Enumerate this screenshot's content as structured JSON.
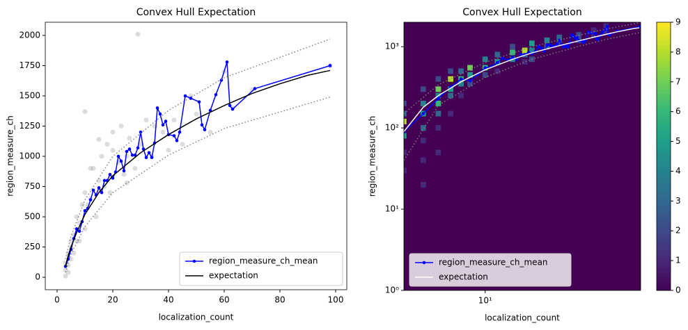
{
  "chart_data": [
    {
      "type": "line",
      "title": "Convex Hull Expectation",
      "xlabel": "localization_count",
      "ylabel": "region_measure_ch",
      "xlim": [
        -4.25,
        104
      ],
      "ylim": [
        -103,
        2109
      ],
      "xticks": [
        0,
        20,
        40,
        60,
        80,
        100
      ],
      "yticks": [
        0,
        250,
        500,
        750,
        1000,
        1250,
        1500,
        1750,
        2000
      ],
      "legend": "lower right",
      "points": {
        "color": "#808080",
        "x": [
          3,
          3,
          3,
          4,
          4,
          4,
          5,
          5,
          5,
          6,
          6,
          7,
          7,
          8,
          8,
          9,
          10,
          10,
          11,
          12,
          13,
          14,
          15,
          16,
          17,
          18,
          19,
          20,
          22,
          23,
          24,
          25,
          26,
          28,
          29,
          30,
          32,
          34,
          35,
          38,
          40,
          42,
          45,
          48,
          50,
          55,
          60,
          63,
          70,
          98,
          10,
          12,
          15,
          20,
          25
        ],
        "values": [
          10,
          60,
          120,
          100,
          200,
          40,
          150,
          300,
          250,
          350,
          200,
          300,
          500,
          450,
          300,
          600,
          700,
          400,
          600,
          650,
          900,
          500,
          800,
          1000,
          750,
          1100,
          700,
          1200,
          950,
          1250,
          850,
          1000,
          1150,
          900,
          2010,
          1100,
          1300,
          1000,
          1250,
          1200,
          1050,
          1300,
          1100,
          1500,
          1350,
          1200,
          1700,
          1400,
          1550,
          1750,
          1370,
          900,
          1140,
          1050,
          780
        ]
      },
      "series": [
        {
          "name": "region_measure_ch_mean",
          "color": "#0000ff",
          "marker": true,
          "x": [
            3,
            4,
            5,
            6,
            7,
            8,
            9,
            10,
            11,
            12,
            13,
            14,
            15,
            16,
            17,
            18,
            19,
            20,
            21,
            22,
            23,
            24,
            25,
            26,
            27,
            28,
            29,
            30,
            31,
            32,
            33,
            34,
            35,
            36,
            37,
            38,
            39,
            40,
            42,
            43,
            44,
            46,
            48,
            51,
            52,
            53,
            55,
            57,
            59,
            61,
            62,
            63,
            71,
            98
          ],
          "values": [
            90,
            150,
            230,
            320,
            400,
            380,
            460,
            550,
            570,
            640,
            720,
            680,
            740,
            700,
            800,
            800,
            850,
            820,
            870,
            1000,
            960,
            880,
            1040,
            1060,
            1010,
            1010,
            1070,
            1200,
            1060,
            990,
            1030,
            990,
            1110,
            1400,
            1350,
            1260,
            1290,
            1180,
            1170,
            1130,
            1200,
            1500,
            1480,
            1450,
            1260,
            1220,
            1380,
            1510,
            1630,
            1780,
            1420,
            1390,
            1560,
            1750
          ]
        },
        {
          "name": "expectation",
          "color": "#000000",
          "x": [
            3,
            4,
            5,
            7,
            10,
            15,
            20,
            30,
            40,
            50,
            60,
            70,
            80,
            90,
            98
          ],
          "values": [
            90,
            180,
            250,
            370,
            520,
            700,
            840,
            1030,
            1180,
            1310,
            1420,
            1520,
            1600,
            1670,
            1710
          ]
        },
        {
          "color": "#808080",
          "dotted": true,
          "x": [
            3,
            5,
            10,
            20,
            40,
            60,
            98
          ],
          "values": [
            150,
            340,
            640,
            1000,
            1380,
            1650,
            1970
          ]
        },
        {
          "color": "#808080",
          "dotted": true,
          "x": [
            3,
            5,
            10,
            20,
            40,
            60,
            98
          ],
          "values": [
            40,
            190,
            420,
            700,
            1010,
            1230,
            1490
          ]
        }
      ]
    },
    {
      "type": "histogram2d",
      "title": "Convex Hull Expectation",
      "xlabel": "localization_count",
      "ylabel": "region_measure_ch",
      "xscale": "log",
      "yscale": "log",
      "xlim": [
        3,
        100
      ],
      "ylim": [
        1,
        2000
      ],
      "xticks": [
        {
          "value": 10,
          "label": "10¹"
        }
      ],
      "yticks": [
        {
          "value": 1,
          "label": "10⁰"
        },
        {
          "value": 10,
          "label": "10¹"
        },
        {
          "value": 100,
          "label": "10²"
        },
        {
          "value": 1000,
          "label": "10³"
        }
      ],
      "legend": "lower left",
      "colormap": "viridis",
      "clim": [
        0,
        9
      ],
      "cticks": [
        0,
        1,
        2,
        3,
        4,
        5,
        6,
        7,
        8,
        9
      ],
      "cells": {
        "x": [
          3,
          3,
          3,
          3,
          3,
          3,
          4,
          4,
          4,
          4,
          4,
          4,
          4,
          5,
          5,
          5,
          5,
          5,
          5,
          5,
          6,
          6,
          6,
          6,
          6,
          7,
          7,
          7,
          7,
          8,
          8,
          8,
          10,
          10,
          10,
          12,
          12,
          12,
          15,
          15,
          15,
          18,
          18,
          18,
          20,
          20,
          20,
          25,
          25,
          30,
          30,
          40,
          40,
          50,
          50,
          60,
          60
        ],
        "y": [
          80,
          120,
          150,
          50,
          30,
          200,
          100,
          150,
          200,
          300,
          70,
          40,
          20,
          200,
          300,
          250,
          150,
          400,
          100,
          50,
          300,
          400,
          250,
          500,
          150,
          400,
          350,
          500,
          250,
          450,
          550,
          350,
          550,
          700,
          450,
          650,
          800,
          500,
          700,
          850,
          1000,
          800,
          900,
          650,
          900,
          1100,
          700,
          1000,
          1200,
          1100,
          1300,
          1200,
          1400,
          1400,
          1600,
          1500,
          1800
        ],
        "counts": [
          5,
          8,
          3,
          1,
          1,
          2,
          3,
          5,
          4,
          2,
          1,
          1,
          1,
          6,
          7,
          4,
          3,
          2,
          1,
          1,
          5,
          8,
          3,
          2,
          1,
          6,
          4,
          3,
          1,
          5,
          7,
          2,
          6,
          4,
          2,
          5,
          3,
          1,
          4,
          6,
          2,
          3,
          8,
          1,
          4,
          5,
          2,
          3,
          4,
          2,
          3,
          2,
          2,
          1,
          1,
          1,
          1
        ]
      },
      "series": [
        {
          "name": "region_measure_ch_mean",
          "color": "#0000ff",
          "marker": true,
          "x": [
            3,
            4,
            5,
            6,
            7,
            8,
            9,
            10,
            11,
            12,
            13,
            14,
            15,
            16,
            17,
            18,
            19,
            20,
            21,
            22,
            23,
            24,
            25,
            26,
            27,
            28,
            29,
            30,
            31,
            32,
            33,
            34,
            35,
            36,
            37,
            38,
            39,
            40,
            42,
            43,
            44,
            46,
            48,
            51,
            52,
            53,
            55,
            57,
            59,
            61,
            62,
            63,
            71,
            98
          ],
          "values": [
            90,
            150,
            230,
            320,
            400,
            380,
            460,
            550,
            570,
            640,
            720,
            680,
            740,
            700,
            800,
            800,
            850,
            820,
            870,
            1000,
            960,
            880,
            1040,
            1060,
            1010,
            1010,
            1070,
            1200,
            1060,
            990,
            1030,
            990,
            1110,
            1400,
            1350,
            1260,
            1290,
            1180,
            1170,
            1130,
            1200,
            1500,
            1480,
            1450,
            1260,
            1220,
            1380,
            1510,
            1630,
            1780,
            1420,
            1390,
            1560,
            1750
          ]
        },
        {
          "name": "expectation",
          "color": "#ffffff",
          "x": [
            3,
            4,
            5,
            7,
            10,
            15,
            20,
            30,
            40,
            50,
            60,
            70,
            80,
            90,
            98
          ],
          "values": [
            90,
            180,
            250,
            370,
            520,
            700,
            840,
            1030,
            1180,
            1310,
            1420,
            1520,
            1600,
            1670,
            1710
          ]
        },
        {
          "color": "#808080",
          "dotted": true,
          "x": [
            3,
            5,
            10,
            20,
            40,
            60,
            98
          ],
          "values": [
            150,
            340,
            640,
            1000,
            1380,
            1650,
            1970
          ]
        },
        {
          "color": "#808080",
          "dotted": true,
          "x": [
            3,
            5,
            10,
            20,
            40,
            60,
            98
          ],
          "values": [
            40,
            190,
            420,
            700,
            1010,
            1230,
            1490
          ]
        }
      ]
    }
  ]
}
